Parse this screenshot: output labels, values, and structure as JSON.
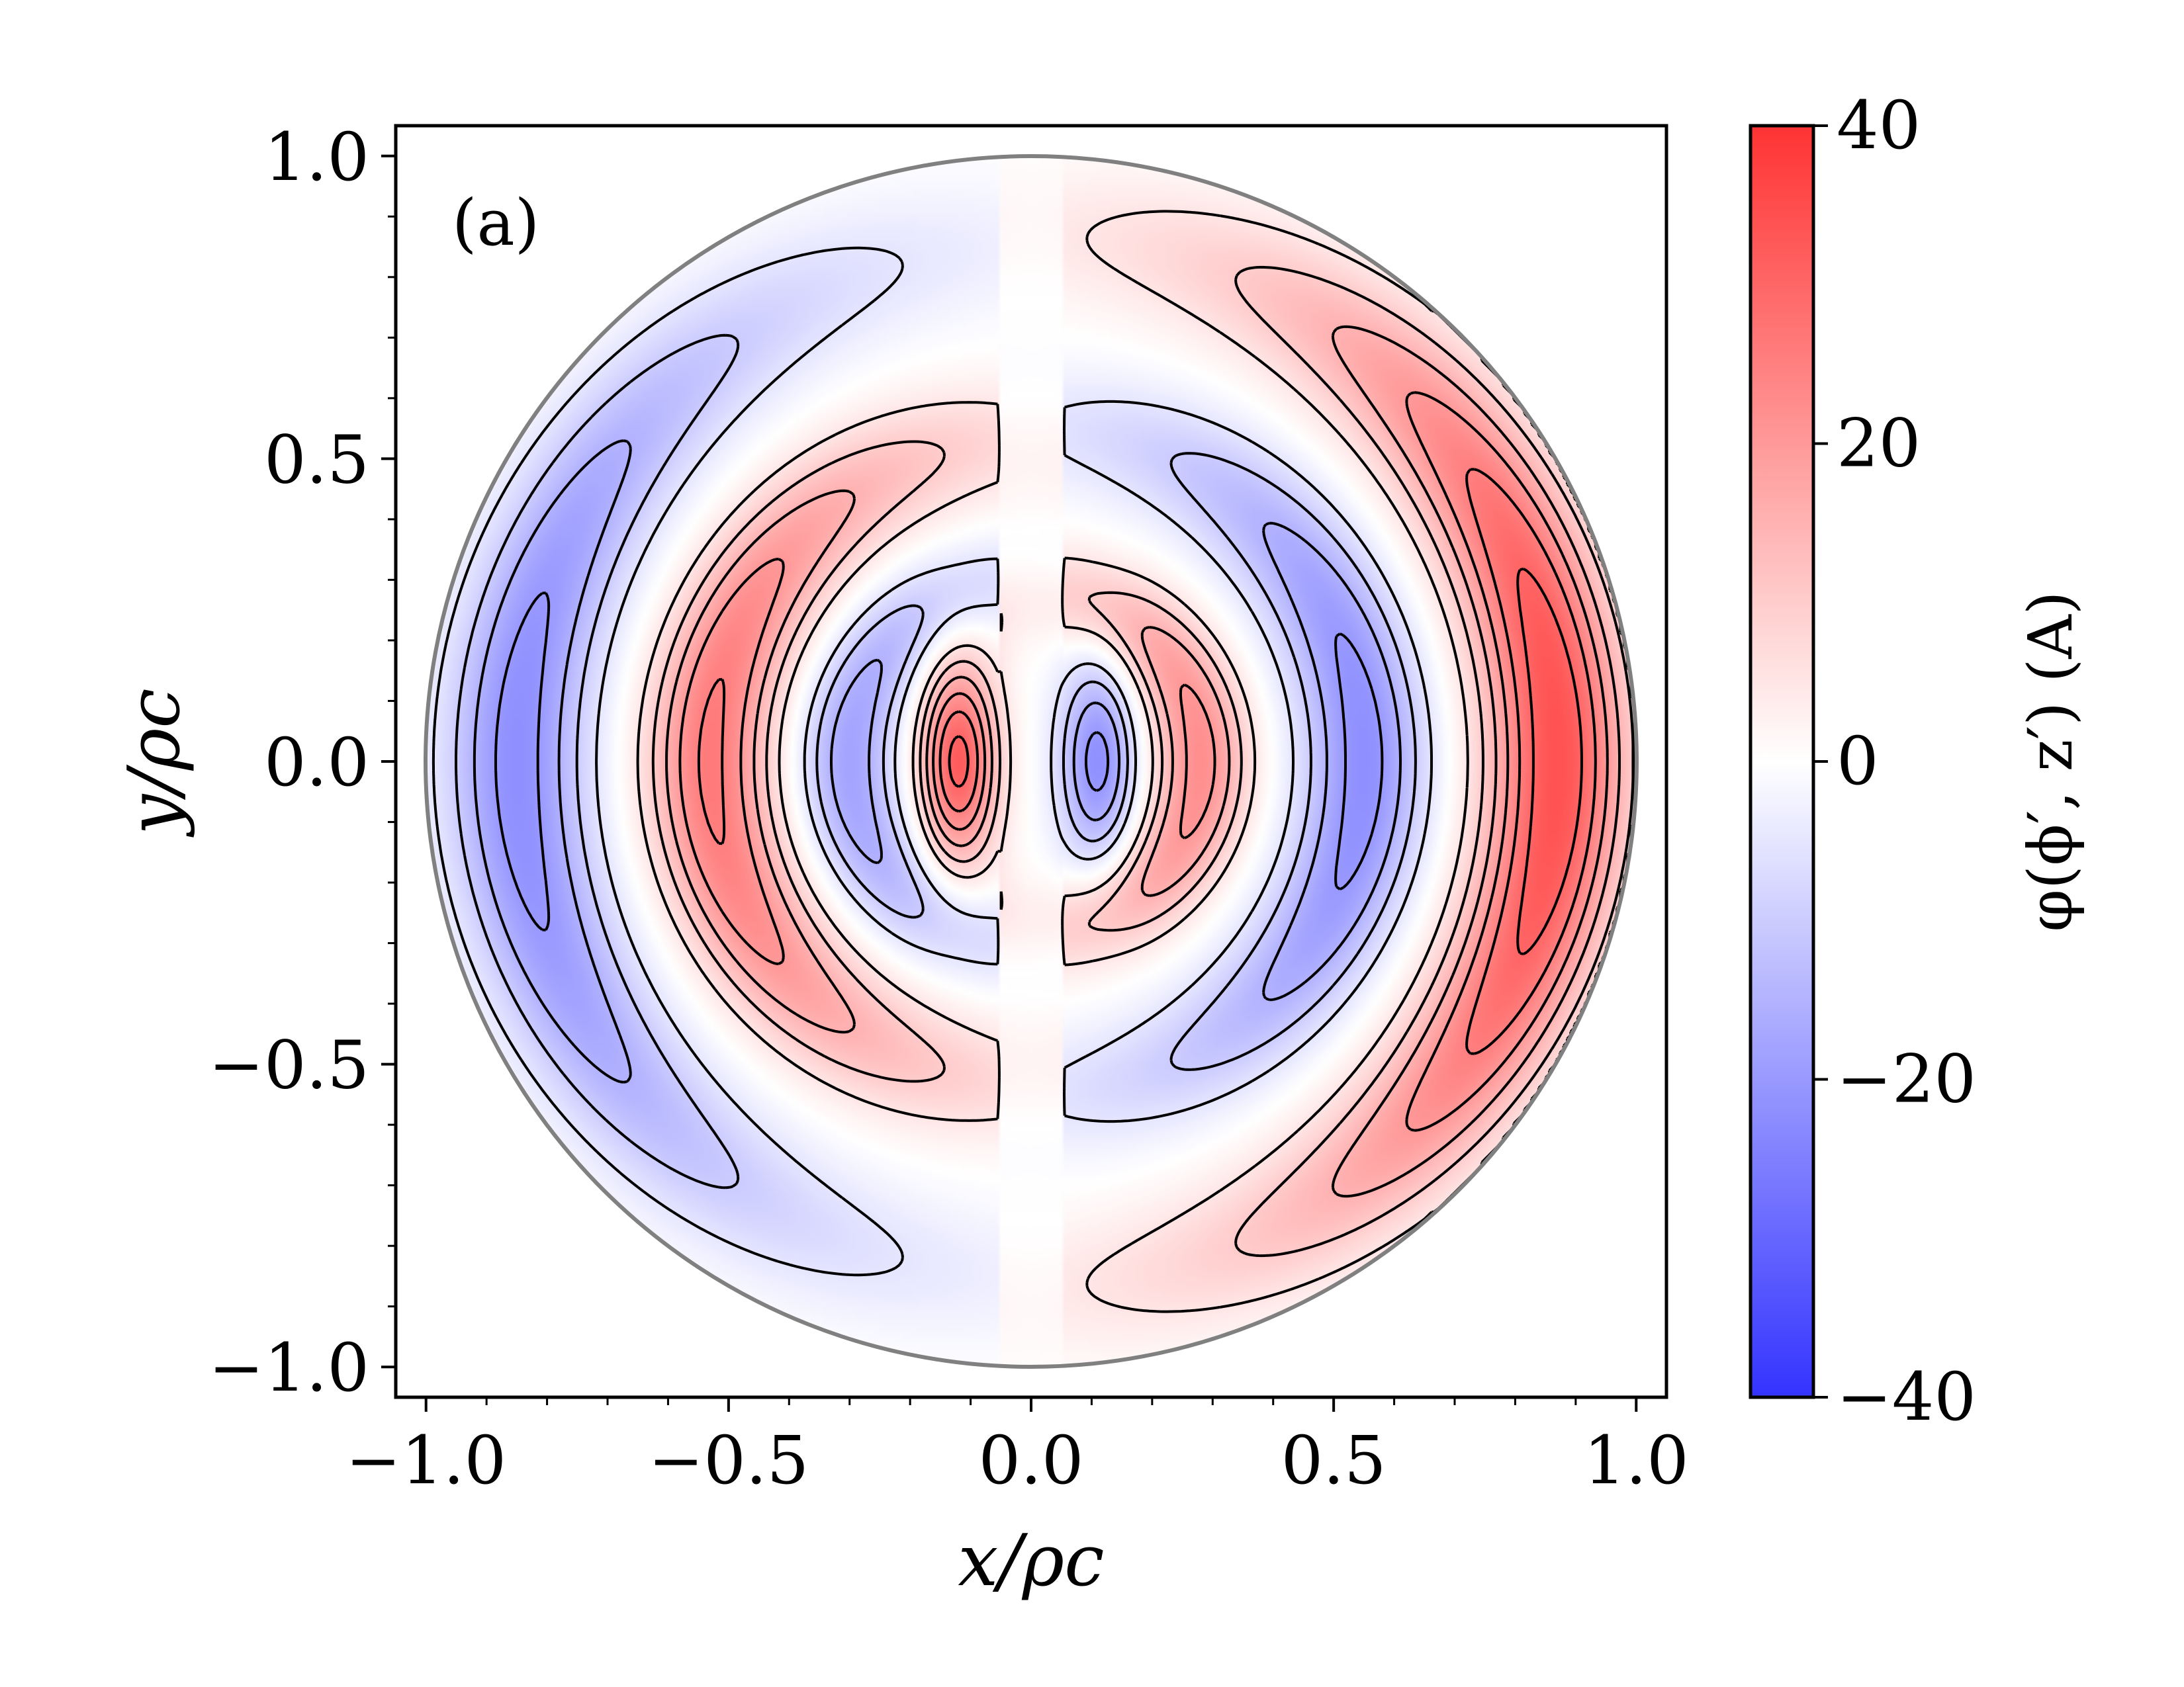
{
  "panel_label": "(a)",
  "colors": {
    "positive": "#ff3333",
    "negative": "#3333ff",
    "zero": "#ffffff",
    "boundary": "#808080",
    "contour": "#000000"
  },
  "chart_data": {
    "type": "heatmap",
    "title": "",
    "xlabel": "x/ρc",
    "ylabel": "y/ρc",
    "colorbar_label": "φ(ϕ′, z′) (A)",
    "xlim": [
      -1.05,
      1.05
    ],
    "ylim": [
      -1.05,
      1.05
    ],
    "x_ticks": [
      -1.0,
      -0.5,
      0.0,
      0.5,
      1.0
    ],
    "y_ticks": [
      -1.0,
      -0.5,
      0.0,
      0.5,
      1.0
    ],
    "x_tick_labels": [
      "−1.0",
      "−0.5",
      "0.0",
      "0.5",
      "1.0"
    ],
    "y_tick_labels": [
      "−1.0",
      "−0.5",
      "0.0",
      "0.5",
      "1.0"
    ],
    "minor_tick_step": 0.1,
    "colorbar_range": [
      -40,
      40
    ],
    "colorbar_ticks": [
      -40,
      -20,
      0,
      20,
      40
    ],
    "colorbar_tick_labels": [
      "−40",
      "−20",
      "0",
      "20",
      "40"
    ],
    "colormap": "bwr",
    "domain": "unit disk (ρ ≤ ρc)",
    "contours": "solid for positive levels, dashed for negative levels",
    "grid": false,
    "features": [
      {
        "sign": "positive",
        "x": -0.12,
        "y": 0.0,
        "peak": 32
      },
      {
        "sign": "negative",
        "x": 0.11,
        "y": 0.0,
        "peak": -22
      },
      {
        "sign": "negative",
        "x": -0.3,
        "y": 0.0,
        "peak": -18
      },
      {
        "sign": "positive",
        "x": 0.28,
        "y": 0.0,
        "peak": 22
      },
      {
        "sign": "positive",
        "x": -0.53,
        "y": 0.0,
        "peak": 26
      },
      {
        "sign": "negative",
        "x": 0.55,
        "y": 0.0,
        "peak": -22
      },
      {
        "sign": "negative",
        "x": -0.85,
        "y": 0.0,
        "peak": -22
      },
      {
        "sign": "positive",
        "x": 0.87,
        "y": 0.0,
        "peak": 34
      }
    ]
  }
}
